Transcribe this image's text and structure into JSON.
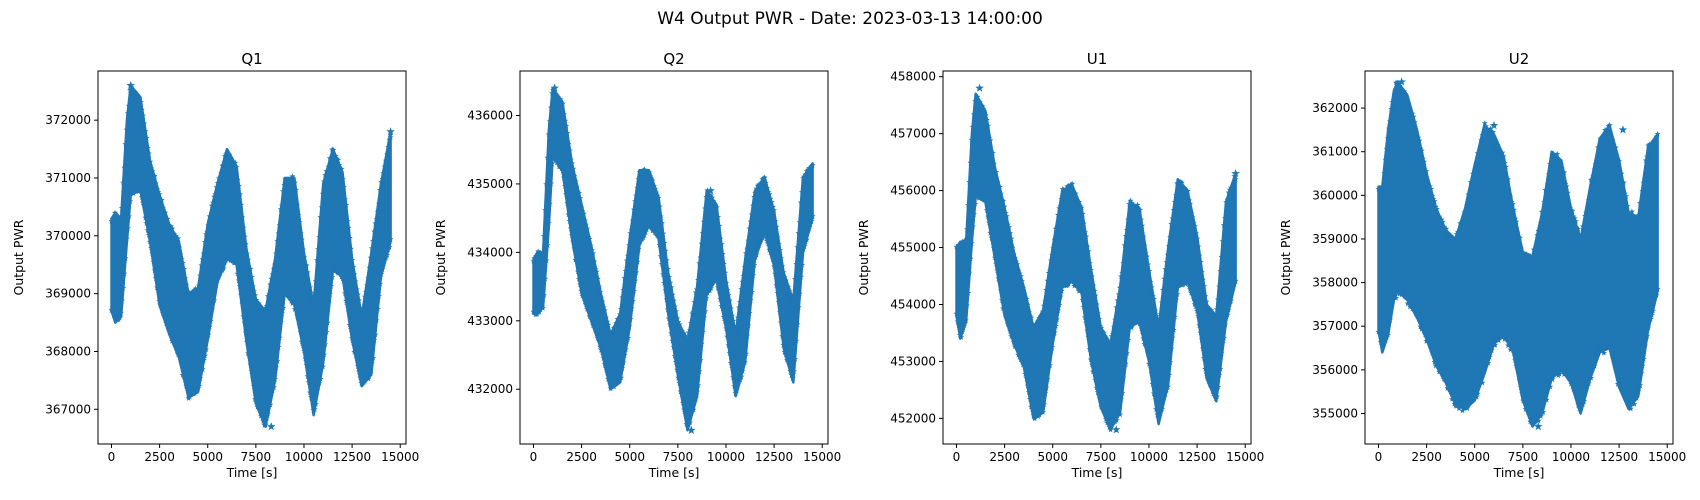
{
  "figure": {
    "title": "W4 Output PWR - Date: 2023-03-13 14:00:00",
    "marker_color": "#1f77b4"
  },
  "chart_data": [
    {
      "type": "scatter",
      "title": "Q1",
      "xlabel": "Time [s]",
      "ylabel": "Output PWR",
      "xlim": [
        -700,
        15300
      ],
      "ylim": [
        366400,
        372850
      ],
      "xticks": [
        0,
        2500,
        5000,
        7500,
        10000,
        12500,
        15000
      ],
      "yticks": [
        367000,
        368000,
        369000,
        370000,
        371000,
        372000
      ],
      "envelope": {
        "x": [
          0,
          200,
          500,
          800,
          1000,
          1500,
          2000,
          2500,
          3000,
          3500,
          4000,
          4500,
          5000,
          5500,
          6000,
          6500,
          7000,
          7500,
          8000,
          8500,
          9000,
          9500,
          10000,
          10500,
          11000,
          11500,
          12000,
          12500,
          13000,
          13500,
          14000,
          14500
        ],
        "upper": [
          370300,
          370400,
          370300,
          372000,
          372600,
          372400,
          371300,
          370700,
          370200,
          369900,
          369000,
          369100,
          370200,
          370900,
          371500,
          371200,
          369800,
          368900,
          368700,
          369600,
          371000,
          371000,
          369700,
          368800,
          370900,
          371500,
          371100,
          369600,
          368600,
          369700,
          370900,
          371800
        ],
        "lower": [
          368700,
          368500,
          368600,
          369900,
          370700,
          370800,
          369900,
          368800,
          368300,
          367900,
          367200,
          367300,
          368200,
          369200,
          369600,
          369500,
          368200,
          367100,
          366700,
          367500,
          369000,
          368800,
          368000,
          366900,
          367800,
          369400,
          369300,
          368200,
          367400,
          367600,
          369300,
          369900
        ]
      },
      "outliers": [
        [
          1000,
          372600
        ],
        [
          8300,
          366700
        ],
        [
          14500,
          371800
        ]
      ]
    },
    {
      "type": "scatter",
      "title": "Q2",
      "xlabel": "Time [s]",
      "ylabel": "Output PWR",
      "xlim": [
        -700,
        15300
      ],
      "ylim": [
        431200,
        436650
      ],
      "xticks": [
        0,
        2500,
        5000,
        7500,
        10000,
        12500,
        15000
      ],
      "yticks": [
        432000,
        433000,
        434000,
        435000,
        436000
      ],
      "envelope": {
        "x": [
          0,
          200,
          500,
          800,
          1000,
          1500,
          2000,
          2500,
          3000,
          3500,
          4000,
          4500,
          5000,
          5500,
          6000,
          6500,
          7000,
          7500,
          8000,
          8500,
          9000,
          9500,
          10000,
          10500,
          11000,
          11500,
          12000,
          12500,
          13000,
          13500,
          14000,
          14500
        ],
        "upper": [
          433900,
          434000,
          434000,
          435800,
          436400,
          436200,
          435300,
          434700,
          434100,
          433400,
          432800,
          433100,
          434200,
          435200,
          435200,
          434800,
          433700,
          433000,
          432700,
          433500,
          434900,
          434700,
          433600,
          432800,
          433900,
          434900,
          435100,
          434600,
          433700,
          433300,
          435100,
          435300
        ],
        "lower": [
          433100,
          433100,
          433200,
          434400,
          435400,
          435200,
          434200,
          433400,
          433000,
          432600,
          432000,
          432100,
          432900,
          434100,
          434400,
          434200,
          433100,
          432200,
          431400,
          431900,
          433400,
          433600,
          432900,
          431900,
          432400,
          433900,
          434300,
          433800,
          432600,
          432100,
          434000,
          434500
        ]
      },
      "outliers": [
        [
          1100,
          436400
        ],
        [
          8200,
          431400
        ],
        [
          9200,
          434900
        ]
      ]
    },
    {
      "type": "scatter",
      "title": "U1",
      "xlabel": "Time [s]",
      "ylabel": "Output PWR",
      "xlim": [
        -700,
        15300
      ],
      "ylim": [
        451550,
        458100
      ],
      "xticks": [
        0,
        2500,
        5000,
        7500,
        10000,
        12500,
        15000
      ],
      "yticks": [
        452000,
        453000,
        454000,
        455000,
        456000,
        457000,
        458000
      ],
      "envelope": {
        "x": [
          0,
          200,
          500,
          800,
          1000,
          1500,
          2000,
          2500,
          3000,
          3500,
          4000,
          4500,
          5000,
          5500,
          6000,
          6500,
          7000,
          7500,
          8000,
          8500,
          9000,
          9500,
          10000,
          10500,
          11000,
          11500,
          12000,
          12500,
          13000,
          13500,
          14000,
          14500
        ],
        "upper": [
          455000,
          455100,
          455100,
          457000,
          457700,
          457400,
          456400,
          455700,
          454900,
          454300,
          453600,
          453900,
          455000,
          456000,
          456100,
          455700,
          454600,
          453600,
          453300,
          454300,
          455800,
          455700,
          454600,
          453600,
          455000,
          456200,
          456000,
          455200,
          454000,
          453800,
          455800,
          456300
        ],
        "lower": [
          453800,
          453400,
          453700,
          455100,
          455900,
          455800,
          454800,
          453800,
          453300,
          452900,
          452000,
          452100,
          453300,
          454300,
          454400,
          454200,
          453000,
          452200,
          451800,
          452100,
          453600,
          453700,
          453000,
          451900,
          452600,
          454300,
          454400,
          453900,
          452700,
          452300,
          453700,
          454400
        ]
      },
      "outliers": [
        [
          1200,
          457800
        ],
        [
          8300,
          451800
        ],
        [
          14500,
          456300
        ]
      ]
    },
    {
      "type": "scatter",
      "title": "U2",
      "xlabel": "Time [s]",
      "ylabel": "Output PWR",
      "xlim": [
        -700,
        15300
      ],
      "ylim": [
        354300,
        362850
      ],
      "xticks": [
        0,
        2500,
        5000,
        7500,
        10000,
        12500,
        15000
      ],
      "yticks": [
        355000,
        356000,
        357000,
        358000,
        359000,
        360000,
        361000,
        362000
      ],
      "envelope": {
        "x": [
          0,
          200,
          500,
          800,
          1000,
          1500,
          2000,
          2500,
          3000,
          3500,
          4000,
          4500,
          5000,
          5500,
          6000,
          6500,
          7000,
          7500,
          8000,
          8500,
          9000,
          9500,
          10000,
          10500,
          11000,
          11500,
          12000,
          12500,
          13000,
          13500,
          14000,
          14500
        ],
        "upper": [
          360200,
          360200,
          361500,
          362400,
          362600,
          362300,
          361500,
          360500,
          359700,
          359200,
          359000,
          359700,
          360700,
          361600,
          361400,
          360900,
          359700,
          358700,
          358600,
          359600,
          361000,
          360800,
          359700,
          359000,
          360200,
          361300,
          361600,
          360800,
          359600,
          359500,
          361100,
          361400
        ],
        "lower": [
          356900,
          356400,
          356800,
          357600,
          357800,
          357600,
          357200,
          356700,
          356100,
          355700,
          355200,
          355100,
          355300,
          355900,
          356600,
          356800,
          356400,
          355300,
          354700,
          355000,
          355800,
          356000,
          355700,
          355000,
          355800,
          356400,
          356500,
          355600,
          355100,
          355400,
          356900,
          357800
        ]
      },
      "outliers": [
        [
          1200,
          362600
        ],
        [
          6000,
          361600
        ],
        [
          8300,
          354700
        ],
        [
          12700,
          361500
        ]
      ]
    }
  ]
}
